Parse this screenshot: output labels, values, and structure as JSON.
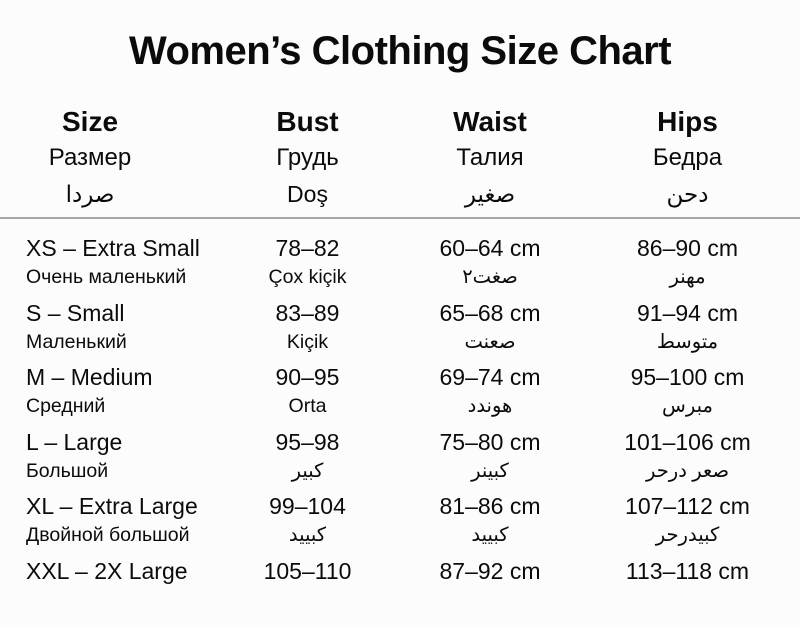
{
  "title": "Women’s Clothing Size Chart",
  "colors": {
    "text": "#0b0b0b",
    "background": "#fcfcfc",
    "divider": "#a8a8a8"
  },
  "table": {
    "columns": [
      {
        "en": "Size",
        "ru": "Размер",
        "ar": "صردا"
      },
      {
        "en": "Bust",
        "ru": "Грудь",
        "ar": "Doş"
      },
      {
        "en": "Waist",
        "ru": "Талия",
        "ar": "صغير"
      },
      {
        "en": "Hips",
        "ru": "Бедра",
        "ar": "دحن"
      }
    ],
    "rows": [
      {
        "size": "XS – Extra Small",
        "size_sub": "Очень маленький",
        "bust": "78–82",
        "bust_sub": "Çox kiçik",
        "waist": "60–64 cm",
        "waist_sub": "صغت٢",
        "hips": "86–90 cm",
        "hips_sub": "مهنر"
      },
      {
        "size": "S – Small",
        "size_sub": "Маленький",
        "bust": "83–89",
        "bust_sub": "Kiçik",
        "waist": "65–68 cm",
        "waist_sub": "صعنت",
        "hips": "91–94 cm",
        "hips_sub": "متوسط"
      },
      {
        "size": "M – Medium",
        "size_sub": "Средний",
        "bust": "90–95",
        "bust_sub": "Orta",
        "waist": "69–74 cm",
        "waist_sub": "هوندد",
        "hips": "95–100 cm",
        "hips_sub": "مبرس"
      },
      {
        "size": "L – Large",
        "size_sub": "Большой",
        "bust": "95–98",
        "bust_sub": "كبير",
        "waist": "75–80 cm",
        "waist_sub": "كبينر",
        "hips": "101–106 cm",
        "hips_sub": "صعر درحر"
      },
      {
        "size": "XL – Extra Large",
        "size_sub": "Двойной большой",
        "bust": "99–104",
        "bust_sub": "كبييد",
        "waist": "81–86 cm",
        "waist_sub": "كبييد",
        "hips": "107–112 cm",
        "hips_sub": "كبيدرحر"
      },
      {
        "size": "XXL – 2X Large",
        "size_sub": "",
        "bust": "105–110",
        "bust_sub": "",
        "waist": "87–92 cm",
        "waist_sub": "",
        "hips": "113–118 cm",
        "hips_sub": ""
      }
    ]
  }
}
